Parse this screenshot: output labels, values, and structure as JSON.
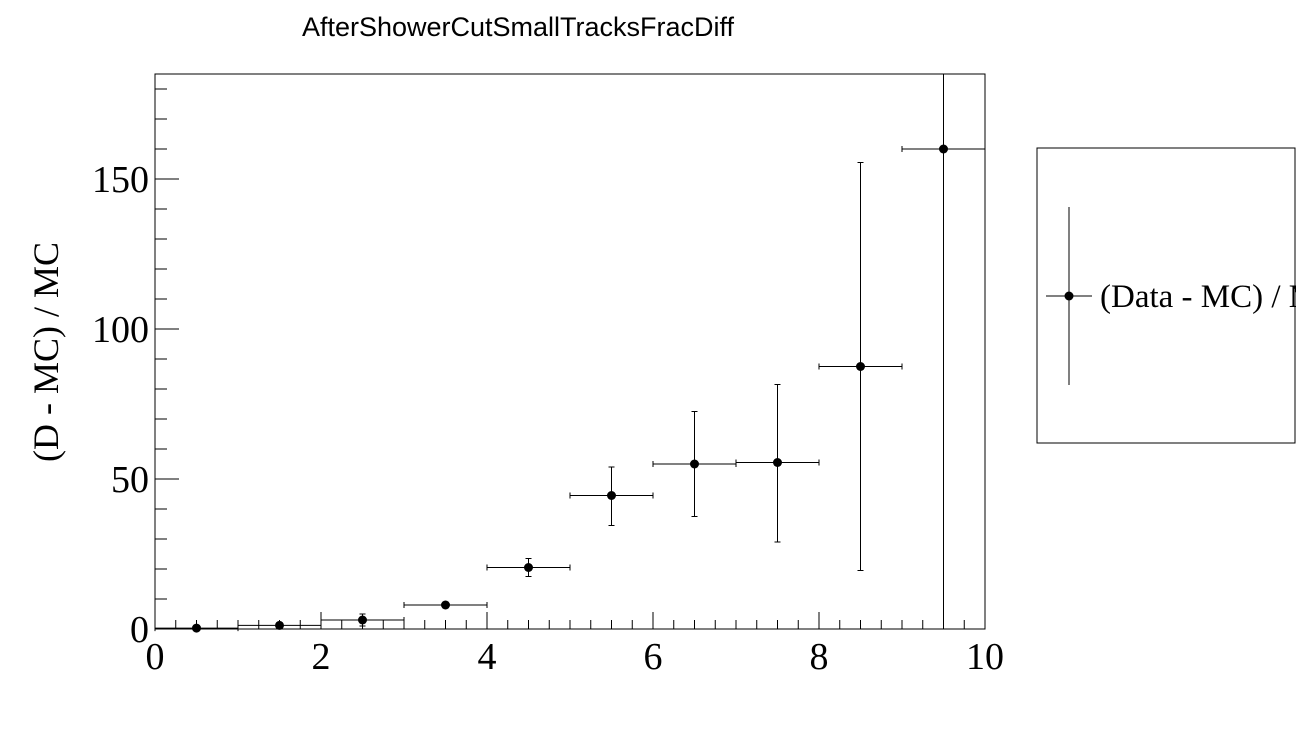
{
  "chart_data": {
    "type": "scatter",
    "title": "AfterShowerCutSmallTracksFracDiff",
    "xlabel": "",
    "ylabel": "(D - MC) / MC",
    "xlim": [
      0,
      10
    ],
    "ylim": [
      0,
      185
    ],
    "x_ticks": [
      0,
      2,
      4,
      6,
      8,
      10
    ],
    "y_ticks": [
      0,
      50,
      100,
      150
    ],
    "grid": false,
    "legend_placement": "right",
    "series": [
      {
        "name": "(Data - MC) / MC",
        "points": [
          {
            "x": 0.5,
            "y": 0.3,
            "xerr": 0.5,
            "yerr_low": 0.2,
            "yerr_high": 0.2
          },
          {
            "x": 1.5,
            "y": 1.2,
            "xerr": 0.5,
            "yerr_low": 0.5,
            "yerr_high": 0.5
          },
          {
            "x": 2.5,
            "y": 3.0,
            "xerr": 0.5,
            "yerr_low": 2.0,
            "yerr_high": 2.0
          },
          {
            "x": 3.5,
            "y": 8.0,
            "xerr": 0.5,
            "yerr_low": 1.0,
            "yerr_high": 1.0
          },
          {
            "x": 4.5,
            "y": 20.5,
            "xerr": 0.5,
            "yerr_low": 3.0,
            "yerr_high": 3.0
          },
          {
            "x": 5.5,
            "y": 44.5,
            "xerr": 0.5,
            "yerr_low": 10.0,
            "yerr_high": 9.5
          },
          {
            "x": 6.5,
            "y": 55.0,
            "xerr": 0.5,
            "yerr_low": 17.5,
            "yerr_high": 17.5
          },
          {
            "x": 7.5,
            "y": 55.5,
            "xerr": 0.5,
            "yerr_low": 26.5,
            "yerr_high": 26.0
          },
          {
            "x": 8.5,
            "y": 87.5,
            "xerr": 0.5,
            "yerr_low": 68.0,
            "yerr_high": 68.0
          },
          {
            "x": 9.5,
            "y": 160.0,
            "xerr": 0.5,
            "yerr_low": 160.0,
            "yerr_high": 40.0
          }
        ]
      }
    ]
  }
}
